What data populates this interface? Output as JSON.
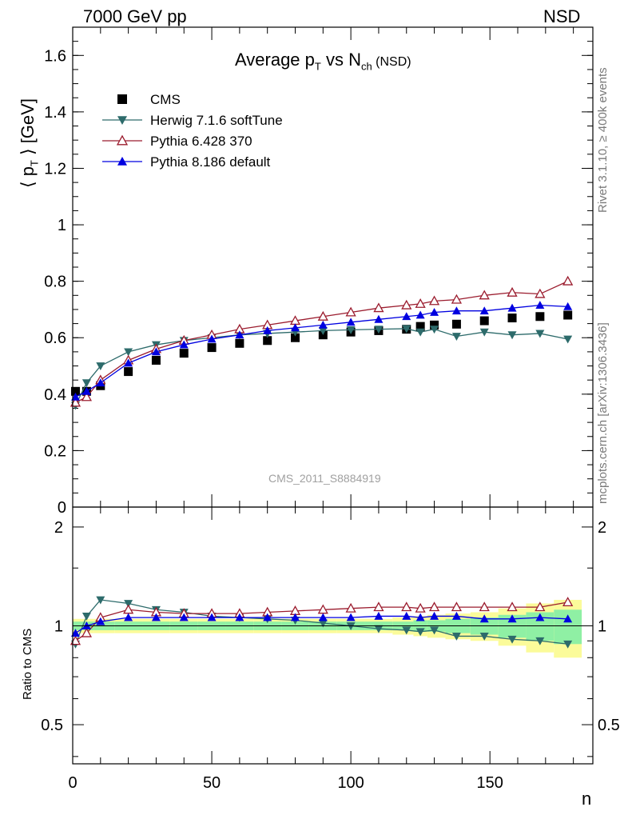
{
  "header": {
    "left": "7000 GeV pp",
    "right": "NSD"
  },
  "side": {
    "rivet": "Rivet 3.1.10, ≥ 400k events",
    "mcplots": "mcplots.cern.ch [arXiv:1306.3436]"
  },
  "watermark": "CMS_2011_S8884919",
  "colors": {
    "cms": "#000000",
    "herwig": "#2d6b6b",
    "pythia6": "#9b1c2e",
    "pythia8": "#0000e0",
    "band_green": "#8ff0a4",
    "band_yellow": "#fbfb9a"
  },
  "chart_data": [
    {
      "type": "scatter",
      "title": "Average p_T vs N_ch (NSD)",
      "title_parts": {
        "main": "Average p",
        "sub1": "T",
        "mid": " vs N",
        "sub2": "ch",
        "tail": " (NSD)"
      },
      "ylabel": "⟨ p_T ⟩ [GeV]",
      "ylabel_parts": {
        "left": "⟨ p",
        "sub": "T",
        "right": " ⟩ [GeV]"
      },
      "xlabel": "n",
      "xlim": [
        0,
        187
      ],
      "ylim": [
        0,
        1.7
      ],
      "yticks": [
        0,
        0.2,
        0.4,
        0.6,
        0.8,
        1,
        1.2,
        1.4,
        1.6
      ],
      "ytick_labels": [
        "0",
        "0.2",
        "0.4",
        "0.6",
        "0.8",
        "1",
        "1.2",
        "1.4",
        "1.6"
      ],
      "legend_position": "top-left",
      "series": [
        {
          "name": "CMS",
          "marker": "square",
          "x": [
            1,
            5,
            10,
            20,
            30,
            40,
            50,
            60,
            70,
            80,
            90,
            100,
            110,
            120,
            125,
            130,
            138,
            148,
            158,
            168,
            178
          ],
          "y": [
            0.41,
            0.41,
            0.43,
            0.48,
            0.52,
            0.545,
            0.565,
            0.58,
            0.59,
            0.6,
            0.61,
            0.62,
            0.625,
            0.63,
            0.64,
            0.645,
            0.648,
            0.66,
            0.67,
            0.675,
            0.68
          ]
        },
        {
          "name": "Herwig 7.1.6 softTune",
          "marker": "triangle-down",
          "x": [
            1,
            5,
            10,
            20,
            30,
            40,
            50,
            60,
            70,
            80,
            90,
            100,
            110,
            120,
            125,
            130,
            138,
            148,
            158,
            168,
            178
          ],
          "y": [
            0.36,
            0.44,
            0.5,
            0.55,
            0.575,
            0.59,
            0.6,
            0.61,
            0.615,
            0.62,
            0.625,
            0.628,
            0.63,
            0.632,
            0.62,
            0.63,
            0.605,
            0.62,
            0.61,
            0.615,
            0.595
          ]
        },
        {
          "name": "Pythia 6.428 370",
          "marker": "triangle-up-open",
          "x": [
            1,
            5,
            10,
            20,
            30,
            40,
            50,
            60,
            70,
            80,
            90,
            100,
            110,
            120,
            125,
            130,
            138,
            148,
            158,
            168,
            178
          ],
          "y": [
            0.37,
            0.39,
            0.45,
            0.52,
            0.56,
            0.59,
            0.61,
            0.63,
            0.645,
            0.66,
            0.675,
            0.69,
            0.705,
            0.715,
            0.72,
            0.73,
            0.735,
            0.75,
            0.76,
            0.755,
            0.8
          ]
        },
        {
          "name": "Pythia 8.186 default",
          "marker": "triangle-up",
          "x": [
            1,
            5,
            10,
            20,
            30,
            40,
            50,
            60,
            70,
            80,
            90,
            100,
            110,
            120,
            125,
            130,
            138,
            148,
            158,
            168,
            178
          ],
          "y": [
            0.39,
            0.41,
            0.44,
            0.51,
            0.55,
            0.575,
            0.595,
            0.61,
            0.625,
            0.635,
            0.645,
            0.655,
            0.665,
            0.675,
            0.68,
            0.69,
            0.695,
            0.695,
            0.705,
            0.715,
            0.71
          ]
        }
      ]
    },
    {
      "type": "scatter",
      "title": "",
      "ylabel": "Ratio to CMS",
      "xlabel": "n",
      "xlim": [
        0,
        187
      ],
      "xticks": [
        0,
        50,
        100,
        150
      ],
      "xtick_labels": [
        "0",
        "50",
        "100",
        "150"
      ],
      "ylim": [
        0.38,
        2.3
      ],
      "yscale": "log",
      "yticks": [
        0.5,
        1,
        2
      ],
      "ytick_labels": [
        "0.5",
        "1",
        "2"
      ],
      "bands": {
        "x": [
          1,
          5,
          10,
          20,
          30,
          40,
          50,
          60,
          70,
          80,
          90,
          100,
          110,
          120,
          125,
          130,
          138,
          148,
          158,
          168,
          178
        ],
        "green": [
          0.03,
          0.03,
          0.03,
          0.03,
          0.03,
          0.03,
          0.03,
          0.03,
          0.03,
          0.03,
          0.03,
          0.03,
          0.03,
          0.03,
          0.04,
          0.04,
          0.05,
          0.06,
          0.08,
          0.1,
          0.12
        ],
        "yellow": [
          0.05,
          0.05,
          0.05,
          0.05,
          0.05,
          0.05,
          0.05,
          0.05,
          0.05,
          0.05,
          0.05,
          0.05,
          0.05,
          0.06,
          0.07,
          0.08,
          0.09,
          0.1,
          0.13,
          0.17,
          0.2
        ]
      },
      "series": [
        {
          "name": "Herwig 7.1.6 softTune",
          "marker": "triangle-down",
          "x": [
            1,
            5,
            10,
            20,
            30,
            40,
            50,
            60,
            70,
            80,
            90,
            100,
            110,
            120,
            125,
            130,
            138,
            148,
            158,
            168,
            178
          ],
          "y": [
            0.88,
            1.07,
            1.2,
            1.17,
            1.12,
            1.1,
            1.07,
            1.06,
            1.05,
            1.04,
            1.02,
            1.0,
            0.98,
            0.97,
            0.96,
            0.97,
            0.93,
            0.93,
            0.91,
            0.9,
            0.88
          ]
        },
        {
          "name": "Pythia 6.428 370",
          "marker": "triangle-up-open",
          "x": [
            1,
            5,
            10,
            20,
            30,
            40,
            50,
            60,
            70,
            80,
            90,
            100,
            110,
            120,
            125,
            130,
            138,
            148,
            158,
            168,
            178
          ],
          "y": [
            0.9,
            0.95,
            1.06,
            1.12,
            1.1,
            1.09,
            1.09,
            1.09,
            1.1,
            1.11,
            1.12,
            1.13,
            1.14,
            1.14,
            1.13,
            1.14,
            1.14,
            1.14,
            1.14,
            1.14,
            1.18
          ]
        },
        {
          "name": "Pythia 8.186 default",
          "marker": "triangle-up",
          "x": [
            1,
            5,
            10,
            20,
            30,
            40,
            50,
            60,
            70,
            80,
            90,
            100,
            110,
            120,
            125,
            130,
            138,
            148,
            158,
            168,
            178
          ],
          "y": [
            0.95,
            1.0,
            1.03,
            1.06,
            1.06,
            1.06,
            1.06,
            1.06,
            1.06,
            1.06,
            1.06,
            1.06,
            1.07,
            1.07,
            1.06,
            1.07,
            1.07,
            1.05,
            1.05,
            1.06,
            1.05
          ]
        }
      ]
    }
  ]
}
